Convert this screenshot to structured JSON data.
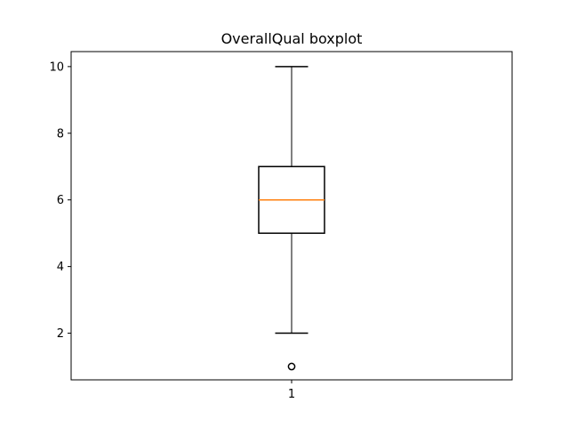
{
  "chart_data": {
    "type": "boxplot",
    "title": "OverallQual boxplot",
    "xlabel": "",
    "ylabel": "",
    "categories": [
      "1"
    ],
    "ylim": [
      0.6,
      10.45
    ],
    "yticks": [
      2,
      4,
      6,
      8,
      10
    ],
    "grid": false,
    "box": {
      "whisker_low": 2,
      "q1": 5,
      "median": 6,
      "q3": 7,
      "whisker_high": 10,
      "outliers": [
        1
      ]
    },
    "colors": {
      "median": "#ff7f0e",
      "box": "#000000"
    }
  }
}
